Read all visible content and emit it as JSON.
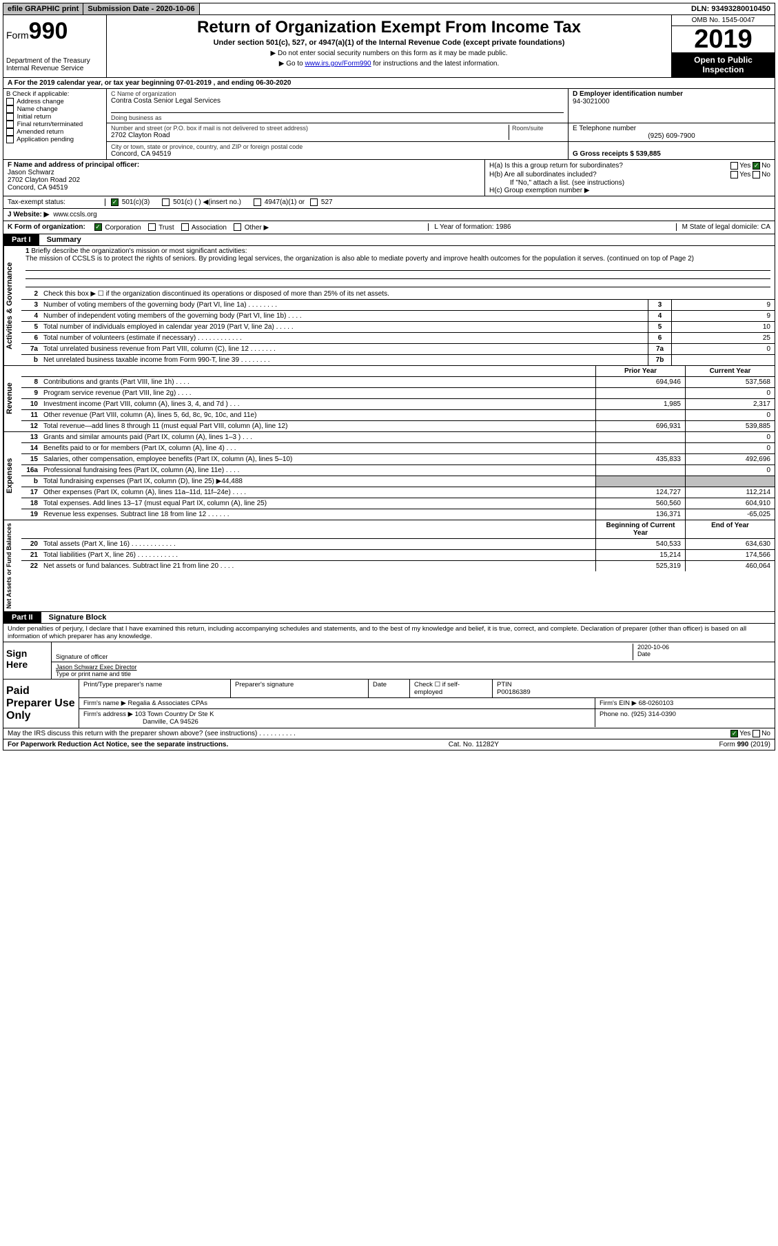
{
  "topbar": {
    "efile": "efile GRAPHIC print",
    "sub_label": "Submission Date - 2020-10-06",
    "dln": "DLN: 93493280010450"
  },
  "header": {
    "form": "Form",
    "form_no": "990",
    "dept": "Department of the Treasury\nInternal Revenue Service",
    "title": "Return of Organization Exempt From Income Tax",
    "sub": "Under section 501(c), 527, or 4947(a)(1) of the Internal Revenue Code (except private foundations)",
    "note1": "▶ Do not enter social security numbers on this form as it may be made public.",
    "note2_pre": "▶ Go to ",
    "note2_link": "www.irs.gov/Form990",
    "note2_post": " for instructions and the latest information.",
    "omb": "OMB No. 1545-0047",
    "year": "2019",
    "inspection": "Open to Public Inspection"
  },
  "line_a": "A For the 2019 calendar year, or tax year beginning 07-01-2019   , and ending 06-30-2020",
  "col_b": {
    "title": "B Check if applicable:",
    "opts": [
      "Address change",
      "Name change",
      "Initial return",
      "Final return/terminated",
      "Amended return",
      "Application pending"
    ]
  },
  "block_c": {
    "name_label": "C Name of organization",
    "name": "Contra Costa Senior Legal Services",
    "dba_label": "Doing business as",
    "addr_label": "Number and street (or P.O. box if mail is not delivered to street address)",
    "room_label": "Room/suite",
    "addr": "2702 Clayton Road",
    "city_label": "City or town, state or province, country, and ZIP or foreign postal code",
    "city": "Concord, CA  94519"
  },
  "block_d": {
    "ein_label": "D Employer identification number",
    "ein": "94-3021000",
    "tel_label": "E Telephone number",
    "tel": "(925) 609-7900",
    "gross_label": "G Gross receipts $ 539,885"
  },
  "block_f": {
    "label": "F  Name and address of principal officer:",
    "name": "Jason Schwarz",
    "addr1": "2702 Clayton Road 202",
    "addr2": "Concord, CA  94519"
  },
  "block_h": {
    "a": "H(a)  Is this a group return for subordinates?",
    "b": "H(b)  Are all subordinates included?",
    "b_note": "If \"No,\" attach a list. (see instructions)",
    "c": "H(c)  Group exemption number ▶",
    "yes": "Yes",
    "no": "No"
  },
  "tax_status": {
    "label": "Tax-exempt status:",
    "o1": "501(c)(3)",
    "o2": "501(c) (  ) ◀(insert no.)",
    "o3": "4947(a)(1) or",
    "o4": "527"
  },
  "website": {
    "label": "J   Website: ▶",
    "value": "www.ccsls.org"
  },
  "k_org": {
    "label": "K Form of organization:",
    "opts": [
      "Corporation",
      "Trust",
      "Association",
      "Other ▶"
    ],
    "l": "L Year of formation: 1986",
    "m": "M State of legal domicile: CA"
  },
  "part1": {
    "hdr": "Part I",
    "title": "Summary"
  },
  "mission": {
    "num": "1",
    "label": "Briefly describe the organization's mission or most significant activities:",
    "text": "The mission of CCSLS is to protect the rights of seniors. By providing legal services, the organization is also able to mediate poverty and improve health outcomes for the population it serves. (continued on top of Page 2)"
  },
  "gov_rows": [
    {
      "n": "2",
      "t": "Check this box ▶ ☐  if the organization discontinued its operations or disposed of more than 25% of its net assets.",
      "box": "",
      "v": ""
    },
    {
      "n": "3",
      "t": "Number of voting members of the governing body (Part VI, line 1a)  .  .  .  .  .  .  .  .",
      "box": "3",
      "v": "9"
    },
    {
      "n": "4",
      "t": "Number of independent voting members of the governing body (Part VI, line 1b)  .  .  .  .",
      "box": "4",
      "v": "9"
    },
    {
      "n": "5",
      "t": "Total number of individuals employed in calendar year 2019 (Part V, line 2a)  .  .  .  .  .",
      "box": "5",
      "v": "10"
    },
    {
      "n": "6",
      "t": "Total number of volunteers (estimate if necessary)  .  .  .  .  .  .  .  .  .  .  .  .",
      "box": "6",
      "v": "25"
    },
    {
      "n": "7a",
      "t": "Total unrelated business revenue from Part VIII, column (C), line 12  .  .  .  .  .  .  .",
      "box": "7a",
      "v": "0"
    },
    {
      "n": "b",
      "t": "Net unrelated business taxable income from Form 990-T, line 39  .  .  .  .  .  .  .  .",
      "box": "7b",
      "v": ""
    }
  ],
  "rev_hdr": {
    "py": "Prior Year",
    "cy": "Current Year"
  },
  "rev_rows": [
    {
      "n": "8",
      "t": "Contributions and grants (Part VIII, line 1h)  .  .  .  .",
      "py": "694,946",
      "cy": "537,568"
    },
    {
      "n": "9",
      "t": "Program service revenue (Part VIII, line 2g)  .  .  .  .",
      "py": "",
      "cy": "0"
    },
    {
      "n": "10",
      "t": "Investment income (Part VIII, column (A), lines 3, 4, and 7d )  .  .  .",
      "py": "1,985",
      "cy": "2,317"
    },
    {
      "n": "11",
      "t": "Other revenue (Part VIII, column (A), lines 5, 6d, 8c, 9c, 10c, and 11e)",
      "py": "",
      "cy": "0"
    },
    {
      "n": "12",
      "t": "Total revenue—add lines 8 through 11 (must equal Part VIII, column (A), line 12)",
      "py": "696,931",
      "cy": "539,885"
    }
  ],
  "exp_rows": [
    {
      "n": "13",
      "t": "Grants and similar amounts paid (Part IX, column (A), lines 1–3 )  .  .  .",
      "py": "",
      "cy": "0"
    },
    {
      "n": "14",
      "t": "Benefits paid to or for members (Part IX, column (A), line 4)  .  .  .",
      "py": "",
      "cy": "0"
    },
    {
      "n": "15",
      "t": "Salaries, other compensation, employee benefits (Part IX, column (A), lines 5–10)",
      "py": "435,833",
      "cy": "492,696"
    },
    {
      "n": "16a",
      "t": "Professional fundraising fees (Part IX, column (A), line 11e)  .  .  .  .",
      "py": "",
      "cy": "0"
    },
    {
      "n": "b",
      "t": "Total fundraising expenses (Part IX, column (D), line 25) ▶44,488",
      "py": "shaded",
      "cy": "shaded"
    },
    {
      "n": "17",
      "t": "Other expenses (Part IX, column (A), lines 11a–11d, 11f–24e)  .  .  .  .",
      "py": "124,727",
      "cy": "112,214"
    },
    {
      "n": "18",
      "t": "Total expenses. Add lines 13–17 (must equal Part IX, column (A), line 25)",
      "py": "560,560",
      "cy": "604,910"
    },
    {
      "n": "19",
      "t": "Revenue less expenses. Subtract line 18 from line 12  .  .  .  .  .  .",
      "py": "136,371",
      "cy": "-65,025"
    }
  ],
  "net_hdr": {
    "b": "Beginning of Current Year",
    "e": "End of Year"
  },
  "net_rows": [
    {
      "n": "20",
      "t": "Total assets (Part X, line 16)  .  .  .  .  .  .  .  .  .  .  .  .",
      "b": "540,533",
      "e": "634,630"
    },
    {
      "n": "21",
      "t": "Total liabilities (Part X, line 26)  .  .  .  .  .  .  .  .  .  .  .",
      "b": "15,214",
      "e": "174,566"
    },
    {
      "n": "22",
      "t": "Net assets or fund balances. Subtract line 21 from line 20  .  .  .  .",
      "b": "525,319",
      "e": "460,064"
    }
  ],
  "part2": {
    "hdr": "Part II",
    "title": "Signature Block"
  },
  "sig": {
    "decl": "Under penalties of perjury, I declare that I have examined this return, including accompanying schedules and statements, and to the best of my knowledge and belief, it is true, correct, and complete. Declaration of preparer (other than officer) is based on all information of which preparer has any knowledge.",
    "sign_here": "Sign Here",
    "sig_officer": "Signature of officer",
    "date_label": "Date",
    "date": "2020-10-06",
    "name": "Jason Schwarz  Exec Director",
    "name_label": "Type or print name and title"
  },
  "prep": {
    "title": "Paid Preparer Use Only",
    "h1": "Print/Type preparer's name",
    "h2": "Preparer's signature",
    "h3": "Date",
    "h4_pre": "Check ☐ if self-employed",
    "h5": "PTIN",
    "ptin": "P00186389",
    "firm_label": "Firm's name    ▶",
    "firm": "Regalia & Associates CPAs",
    "ein_label": "Firm's EIN ▶",
    "ein": "68-0260103",
    "addr_label": "Firm's address ▶",
    "addr1": "103 Town Country Dr Ste K",
    "addr2": "Danville, CA  94526",
    "phone_label": "Phone no.",
    "phone": "(925) 314-0390"
  },
  "discuss": {
    "q": "May the IRS discuss this return with the preparer shown above? (see instructions)  .  .  .  .  .  .  .  .  .  .",
    "yes": "Yes",
    "no": "No"
  },
  "footer": {
    "pra": "For Paperwork Reduction Act Notice, see the separate instructions.",
    "cat": "Cat. No. 11282Y",
    "form": "Form 990 (2019)"
  }
}
